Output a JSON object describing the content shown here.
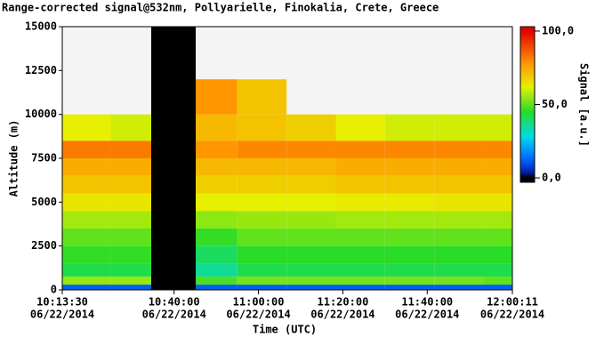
{
  "chart_data": {
    "type": "heatmap",
    "title": "Range-corrected signal@532nm, Pollyarielle, Finokalia, Crete, Greece",
    "xlabel": "Time (UTC)",
    "ylabel": "Altitude (m)",
    "xlim": [
      36810,
      43211
    ],
    "xticks": [
      {
        "value": 36810,
        "label": "10:13:30"
      },
      {
        "value": 38400,
        "label": "10:40:00"
      },
      {
        "value": 39600,
        "label": "11:00:00"
      },
      {
        "value": 40800,
        "label": "11:20:00"
      },
      {
        "value": 42000,
        "label": "11:40:00"
      },
      {
        "value": 43211,
        "label": "12:00:11"
      }
    ],
    "xtick_dates": [
      "06/22/2014",
      "06/22/2014",
      "06/22/2014",
      "06/22/2014",
      "06/22/2014",
      "06/22/2014"
    ],
    "ylim": [
      0,
      15000
    ],
    "yticks": [
      0,
      2500,
      5000,
      7500,
      10000,
      12500,
      15000
    ],
    "x_edges": [
      36810,
      37500,
      38075,
      38708,
      39300,
      40000,
      40700,
      41400,
      42100,
      42800,
      43211
    ],
    "y_edges": [
      0,
      300,
      750,
      1500,
      2500,
      3500,
      4500,
      5500,
      6500,
      7500,
      8500,
      10000,
      12000,
      15000
    ],
    "no_data": [
      38075,
      38708
    ],
    "z": [
      [
        12,
        12,
        null,
        12,
        12,
        12,
        12,
        12,
        12,
        12
      ],
      [
        55,
        55,
        null,
        48,
        52,
        52,
        52,
        52,
        52,
        50
      ],
      [
        42,
        42,
        null,
        35,
        42,
        42,
        42,
        42,
        42,
        42
      ],
      [
        46,
        46,
        null,
        40,
        45,
        45,
        45,
        45,
        45,
        45
      ],
      [
        50,
        50,
        null,
        46,
        50,
        50,
        50,
        50,
        50,
        50
      ],
      [
        56,
        56,
        null,
        54,
        55,
        55,
        56,
        56,
        56,
        56
      ],
      [
        64,
        64,
        null,
        62,
        62,
        62,
        63,
        63,
        64,
        64
      ],
      [
        70,
        70,
        null,
        68,
        68,
        68,
        70,
        70,
        70,
        70
      ],
      [
        74,
        74,
        null,
        72,
        72,
        72,
        74,
        74,
        74,
        74
      ],
      [
        82,
        82,
        null,
        78,
        80,
        80,
        80,
        80,
        80,
        80
      ],
      [
        62,
        60,
        null,
        72,
        70,
        68,
        62,
        60,
        60,
        60
      ],
      [
        null,
        null,
        null,
        78,
        70,
        null,
        null,
        null,
        null,
        null
      ],
      [
        null,
        null,
        null,
        null,
        null,
        null,
        null,
        null,
        null,
        null
      ]
    ],
    "colorbar": {
      "label": "Signal [a.u.]",
      "lim": [
        -3,
        103
      ],
      "ticks": [
        {
          "value": 0,
          "label": "0,0"
        },
        {
          "value": 50,
          "label": "50,0"
        },
        {
          "value": 100,
          "label": "100,0"
        }
      ]
    }
  }
}
